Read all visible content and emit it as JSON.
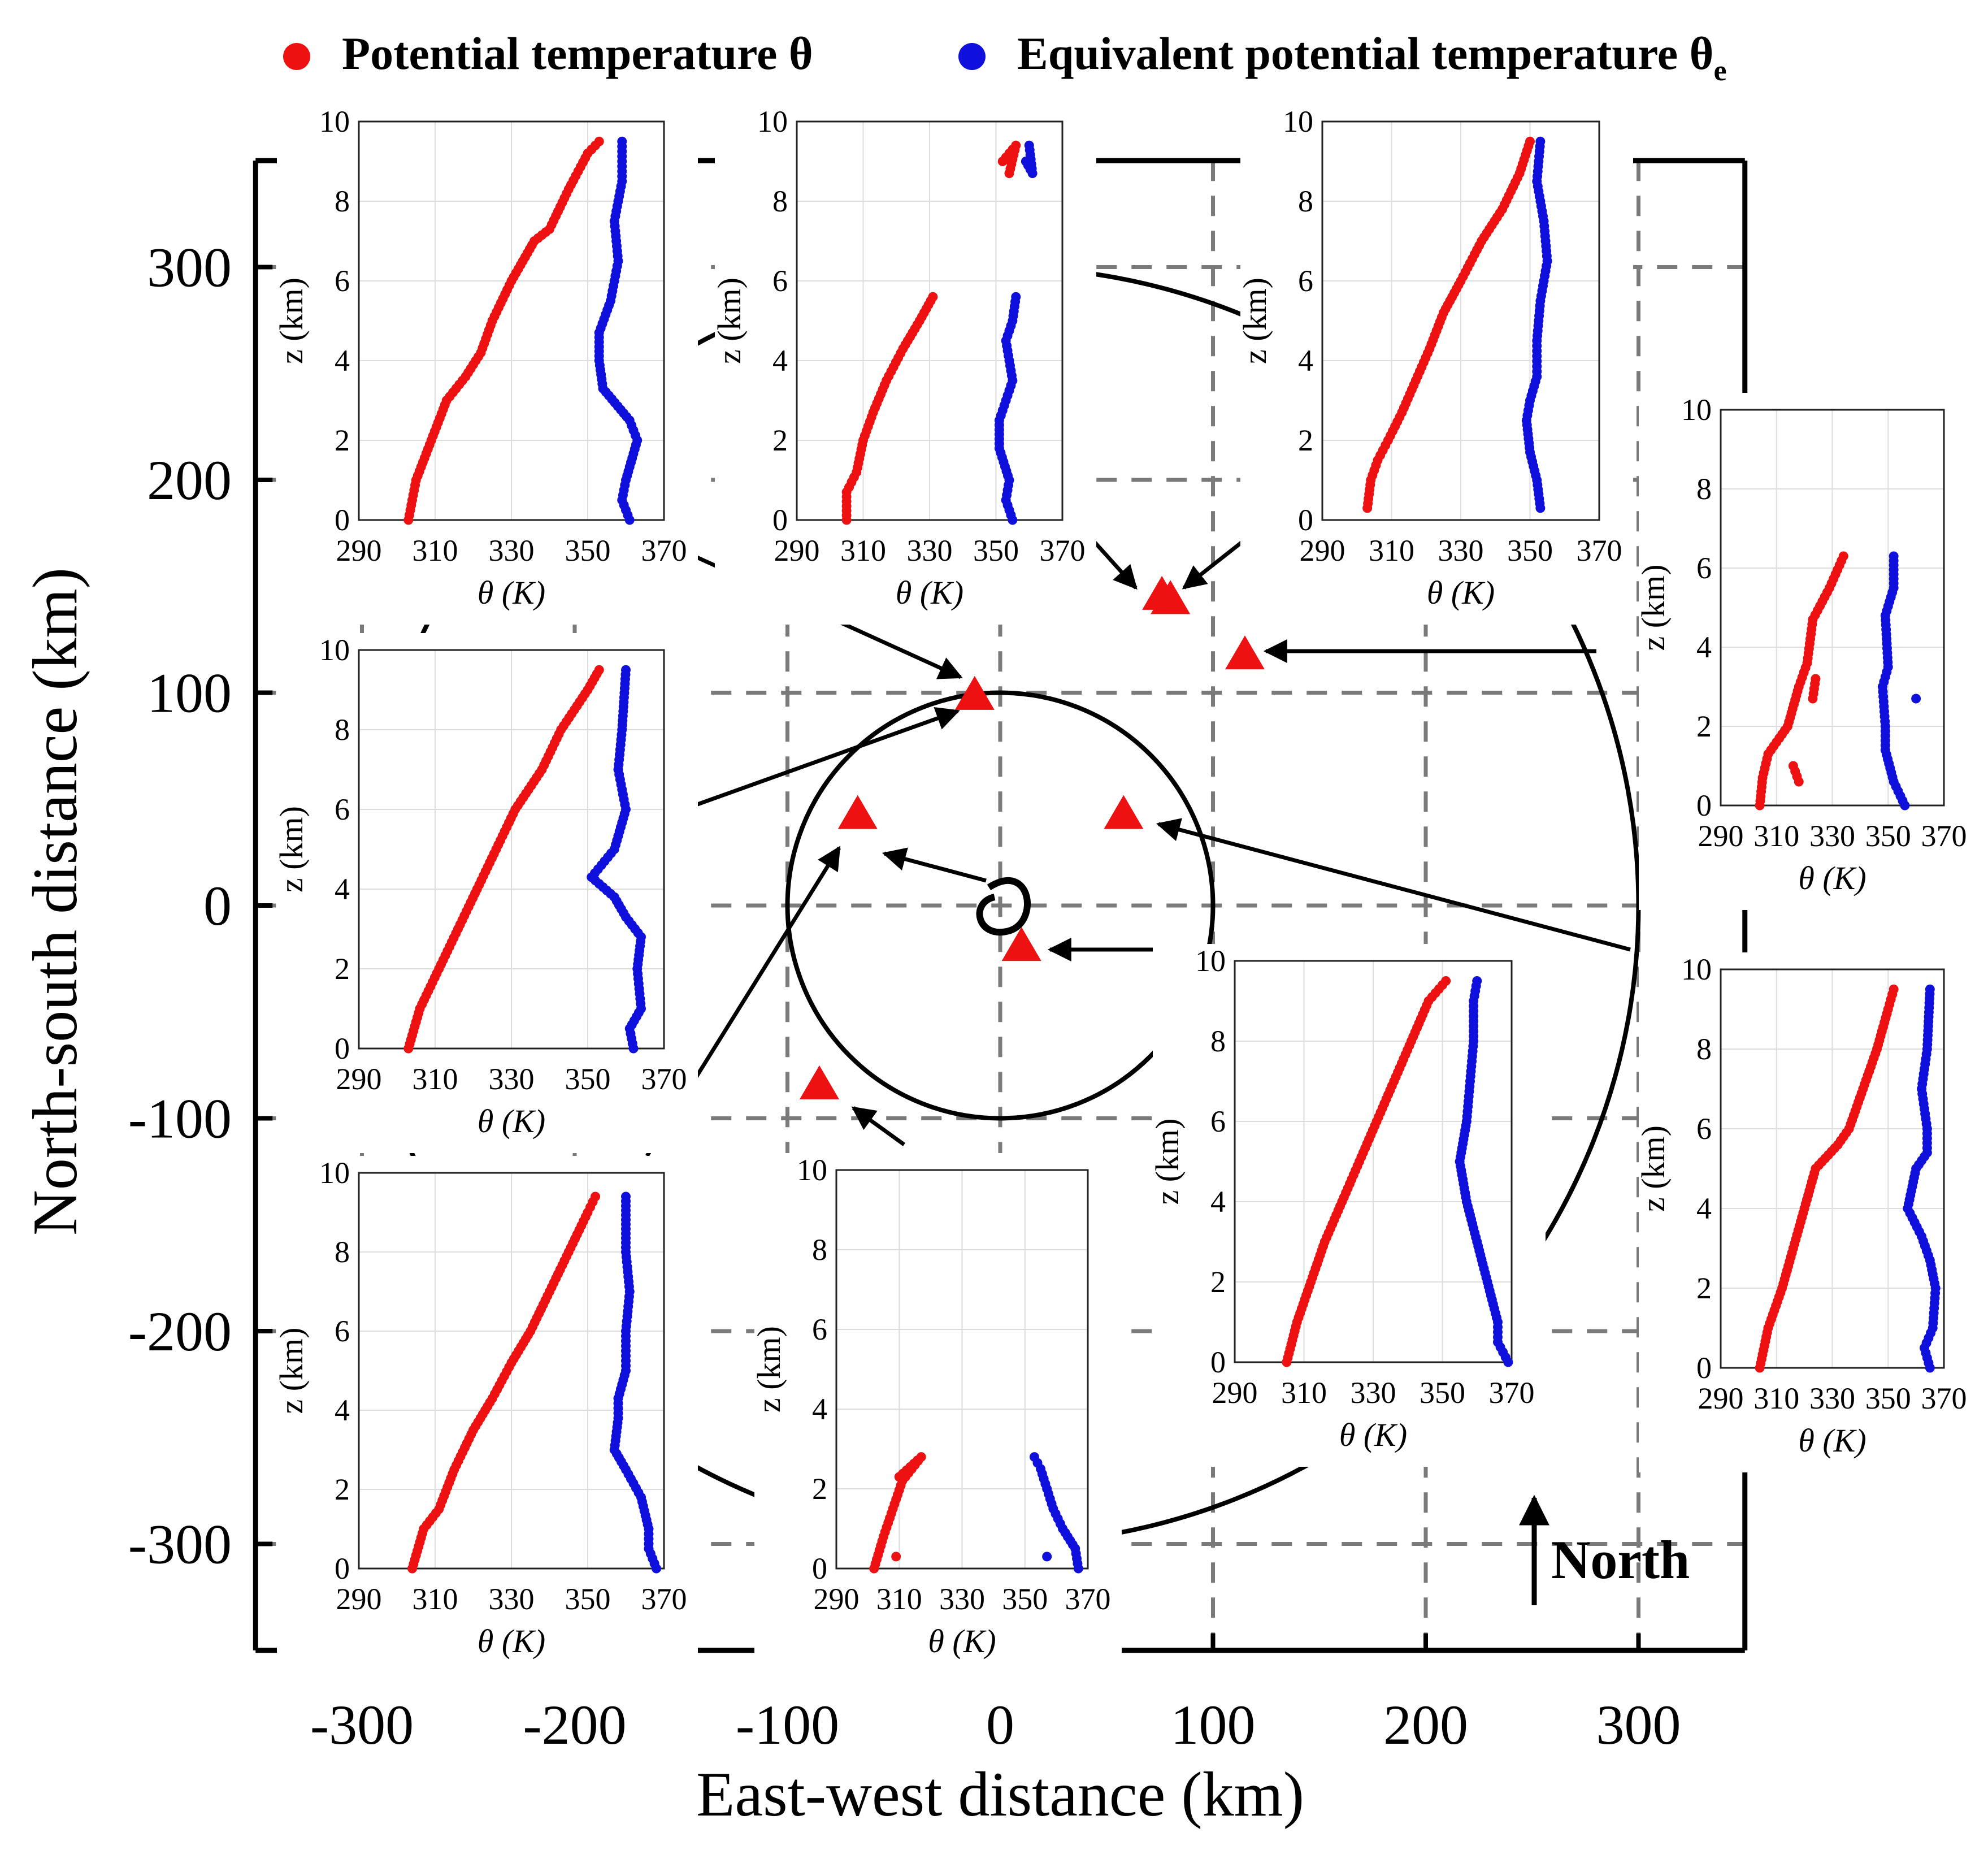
{
  "legend": {
    "theta_label": "Potential temperature θ",
    "theta_e_label_main": "Equivalent potential temperature θ",
    "theta_e_label_sub": "e",
    "colors": {
      "theta": "#ee1111",
      "theta_e": "#1010dd"
    }
  },
  "map_axes": {
    "xlabel": "East-west distance (km)",
    "ylabel": "North-south distance (km)",
    "xlim": [
      -350,
      350
    ],
    "ylim": [
      -350,
      350
    ],
    "xticks": [
      -300,
      -200,
      -100,
      0,
      100,
      200,
      300
    ],
    "yticks": [
      -300,
      -200,
      -100,
      0,
      100,
      200,
      300
    ],
    "xtick_labels": [
      "-300",
      "-200",
      "-100",
      "0",
      "100",
      "200",
      "300"
    ],
    "ytick_labels": [
      "-300",
      "-200",
      "-100",
      "0",
      "100",
      "200",
      "300"
    ],
    "grid_lines": [
      -300,
      -200,
      -100,
      0,
      100,
      200,
      300
    ],
    "circle_radii_km": [
      100,
      300
    ],
    "triangle_color": "#ee1111",
    "north_label": "North"
  },
  "chart_data": {
    "type": "scatter",
    "title": "",
    "xlabel": "East-west distance (km)",
    "ylabel": "North-south distance (km)",
    "xlim": [
      -350,
      350
    ],
    "ylim": [
      -350,
      350
    ],
    "storm_center": [
      0,
      0
    ],
    "sounding_sites": [
      {
        "id": "site-nw",
        "x": -12,
        "y": 98
      },
      {
        "id": "site-n1",
        "x": 76,
        "y": 145
      },
      {
        "id": "site-n2",
        "x": 80,
        "y": 143
      },
      {
        "id": "site-ne",
        "x": 115,
        "y": 117
      },
      {
        "id": "site-w",
        "x": -67,
        "y": 42
      },
      {
        "id": "site-e",
        "x": 58,
        "y": 42
      },
      {
        "id": "site-c",
        "x": 10,
        "y": -20
      },
      {
        "id": "site-sw",
        "x": -85,
        "y": -85
      }
    ],
    "profile_axes": {
      "xlabel": "θ (K)",
      "ylabel": "z (km)",
      "xlim": [
        290,
        370
      ],
      "ylim": [
        0,
        10
      ],
      "xtick_labels": [
        "290",
        "310",
        "330",
        "350",
        "370"
      ],
      "ytick_labels": [
        "0",
        "2",
        "4",
        "6",
        "8",
        "10"
      ]
    },
    "profiles": [
      {
        "id": "inset-top-left",
        "site": "site-nw",
        "theta": [
          [
            303,
            0
          ],
          [
            305,
            1
          ],
          [
            309,
            2
          ],
          [
            313,
            3
          ],
          [
            318,
            3.6
          ],
          [
            322,
            4.2
          ],
          [
            325,
            5
          ],
          [
            330,
            6
          ],
          [
            336,
            7
          ],
          [
            340,
            7.3
          ],
          [
            345,
            8.3
          ],
          [
            350,
            9.2
          ],
          [
            353,
            9.5
          ]
        ],
        "theta_e": [
          [
            361,
            0
          ],
          [
            359,
            0.5
          ],
          [
            360,
            1
          ],
          [
            363,
            2
          ],
          [
            361,
            2.5
          ],
          [
            354,
            3.3
          ],
          [
            353,
            4
          ],
          [
            353,
            4.7
          ],
          [
            356,
            5.5
          ],
          [
            358,
            6.5
          ],
          [
            357,
            7.5
          ],
          [
            359,
            8.5
          ],
          [
            359,
            9.5
          ]
        ]
      },
      {
        "id": "inset-top-mid",
        "site": "site-n1",
        "theta": [
          [
            305,
            0
          ],
          [
            305,
            0.7
          ],
          [
            308,
            1.2
          ],
          [
            310,
            2
          ],
          [
            313,
            2.7
          ],
          [
            317,
            3.5
          ],
          [
            322,
            4.3
          ],
          [
            327,
            5
          ],
          [
            331,
            5.6
          ],
          [
            352,
            9.0
          ],
          [
            356,
            9.4
          ],
          [
            354,
            8.7
          ]
        ],
        "theta_e": [
          [
            355,
            0
          ],
          [
            353,
            0.5
          ],
          [
            354,
            1
          ],
          [
            351,
            1.8
          ],
          [
            351,
            2.5
          ],
          [
            353,
            3
          ],
          [
            355,
            3.5
          ],
          [
            354,
            4
          ],
          [
            353,
            4.5
          ],
          [
            355,
            5
          ],
          [
            356,
            5.6
          ],
          [
            360,
            9.4
          ],
          [
            361,
            8.7
          ],
          [
            359,
            9.0
          ]
        ]
      },
      {
        "id": "inset-top-right",
        "site": "site-n2",
        "theta": [
          [
            303,
            0.3
          ],
          [
            304,
            1
          ],
          [
            306,
            1.5
          ],
          [
            309,
            2
          ],
          [
            313,
            2.7
          ],
          [
            317,
            3.5
          ],
          [
            321,
            4.3
          ],
          [
            325,
            5.2
          ],
          [
            330,
            6
          ],
          [
            336,
            7
          ],
          [
            342,
            7.8
          ],
          [
            347,
            8.7
          ],
          [
            350,
            9.5
          ]
        ],
        "theta_e": [
          [
            353,
            0.3
          ],
          [
            352,
            1
          ],
          [
            350,
            1.7
          ],
          [
            349,
            2.5
          ],
          [
            350,
            3
          ],
          [
            352,
            3.6
          ],
          [
            352,
            4.5
          ],
          [
            353,
            5.5
          ],
          [
            355,
            6.5
          ],
          [
            354,
            7.5
          ],
          [
            352,
            8.5
          ],
          [
            353,
            9.5
          ]
        ]
      },
      {
        "id": "inset-right-top",
        "site": "site-ne",
        "theta": [
          [
            304,
            0
          ],
          [
            305,
            0.7
          ],
          [
            307,
            1.3
          ],
          [
            310,
            1.6
          ],
          [
            314,
            2
          ],
          [
            318,
            3
          ],
          [
            321,
            3.6
          ],
          [
            323,
            4.7
          ],
          [
            329,
            5.5
          ],
          [
            334,
            6.3
          ],
          [
            316,
            1
          ],
          [
            318,
            0.6
          ],
          [
            324,
            3.2
          ],
          [
            323,
            2.7
          ]
        ],
        "theta_e": [
          [
            356,
            0
          ],
          [
            352,
            0.6
          ],
          [
            349,
            1.4
          ],
          [
            349,
            2
          ],
          [
            348,
            3
          ],
          [
            350,
            3.5
          ],
          [
            349,
            4.8
          ],
          [
            352,
            5.5
          ],
          [
            352,
            6.3
          ],
          [
            360,
            2.7
          ]
        ]
      },
      {
        "id": "inset-mid-left",
        "site": "site-nw",
        "theta": [
          [
            303,
            0
          ],
          [
            306,
            1
          ],
          [
            311,
            2
          ],
          [
            316,
            3
          ],
          [
            321,
            4
          ],
          [
            326,
            5
          ],
          [
            331,
            6
          ],
          [
            338,
            7
          ],
          [
            343,
            8
          ],
          [
            350,
            9
          ],
          [
            353,
            9.5
          ]
        ],
        "theta_e": [
          [
            362,
            0
          ],
          [
            361,
            0.5
          ],
          [
            364,
            1
          ],
          [
            363,
            2
          ],
          [
            364,
            2.8
          ],
          [
            360,
            3.3
          ],
          [
            357,
            3.8
          ],
          [
            351,
            4.3
          ],
          [
            357,
            5
          ],
          [
            360,
            6
          ],
          [
            358,
            7
          ],
          [
            359,
            8
          ],
          [
            360,
            9.5
          ]
        ]
      },
      {
        "id": "inset-bottom-left",
        "site": "site-w",
        "theta": [
          [
            304,
            0
          ],
          [
            307,
            1
          ],
          [
            311,
            1.5
          ],
          [
            315,
            2.5
          ],
          [
            320,
            3.5
          ],
          [
            325,
            4.3
          ],
          [
            330,
            5.2
          ],
          [
            335,
            6
          ],
          [
            340,
            7
          ],
          [
            345,
            8
          ],
          [
            350,
            9
          ],
          [
            352,
            9.4
          ]
        ],
        "theta_e": [
          [
            368,
            0
          ],
          [
            366,
            0.5
          ],
          [
            366,
            1
          ],
          [
            364,
            1.8
          ],
          [
            360,
            2.5
          ],
          [
            357,
            3
          ],
          [
            358,
            3.8
          ],
          [
            358,
            4.3
          ],
          [
            360,
            5
          ],
          [
            360,
            6
          ],
          [
            361,
            7
          ],
          [
            360,
            8
          ],
          [
            360,
            9.4
          ]
        ]
      },
      {
        "id": "inset-bottom-mid",
        "site": "site-sw",
        "theta": [
          [
            302,
            0
          ],
          [
            305,
            0.8
          ],
          [
            308,
            1.5
          ],
          [
            311,
            2.2
          ],
          [
            317,
            2.8
          ],
          [
            310,
            2.3
          ],
          [
            309,
            0.3
          ]
        ],
        "theta_e": [
          [
            367,
            0
          ],
          [
            366,
            0.5
          ],
          [
            362,
            1
          ],
          [
            359,
            1.5
          ],
          [
            357,
            2
          ],
          [
            355,
            2.5
          ],
          [
            353,
            2.8
          ],
          [
            357,
            0.3
          ]
        ]
      },
      {
        "id": "inset-bottom-center",
        "site": "site-c",
        "theta": [
          [
            305,
            0
          ],
          [
            308,
            1
          ],
          [
            312,
            2
          ],
          [
            316,
            3
          ],
          [
            321,
            4
          ],
          [
            326,
            5
          ],
          [
            331,
            6
          ],
          [
            336,
            7
          ],
          [
            341,
            8
          ],
          [
            346,
            9
          ],
          [
            351,
            9.5
          ]
        ],
        "theta_e": [
          [
            369,
            0
          ],
          [
            366,
            0.5
          ],
          [
            366,
            1
          ],
          [
            363,
            2
          ],
          [
            360,
            3
          ],
          [
            357,
            4
          ],
          [
            355,
            5
          ],
          [
            357,
            6
          ],
          [
            358,
            7
          ],
          [
            359,
            8
          ],
          [
            359,
            9
          ],
          [
            360,
            9.5
          ]
        ]
      },
      {
        "id": "inset-bottom-right",
        "site": "site-e",
        "theta": [
          [
            304,
            0
          ],
          [
            307,
            1
          ],
          [
            312,
            2
          ],
          [
            316,
            3
          ],
          [
            320,
            4
          ],
          [
            324,
            5
          ],
          [
            332,
            5.6
          ],
          [
            336,
            6
          ],
          [
            341,
            7
          ],
          [
            346,
            8
          ],
          [
            350,
            9
          ],
          [
            352,
            9.5
          ]
        ],
        "theta_e": [
          [
            365,
            0
          ],
          [
            363,
            0.5
          ],
          [
            366,
            1
          ],
          [
            367,
            2
          ],
          [
            365,
            2.7
          ],
          [
            362,
            3.3
          ],
          [
            357,
            4
          ],
          [
            360,
            5
          ],
          [
            364,
            5.4
          ],
          [
            364,
            6
          ],
          [
            362,
            7
          ],
          [
            364,
            8
          ],
          [
            365,
            9.5
          ]
        ]
      }
    ]
  }
}
